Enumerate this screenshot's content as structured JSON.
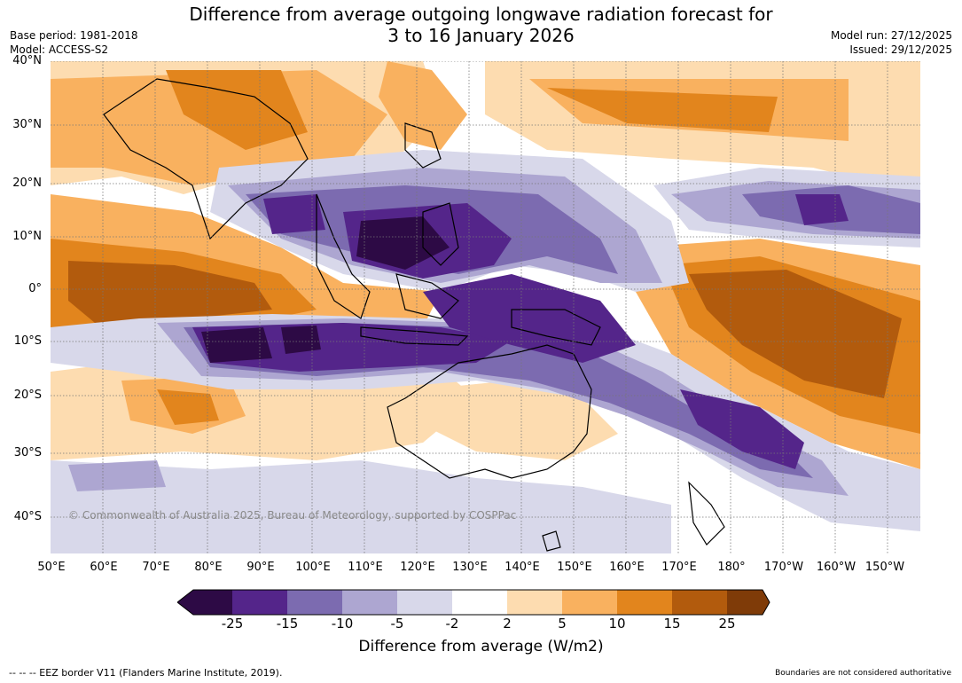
{
  "title_line1": "Difference from average outgoing longwave radiation forecast for",
  "title_line2": "3 to 16 January 2026",
  "meta": {
    "base_period": "Base period: 1981-2018",
    "model": "Model: ACCESS-S2",
    "model_run": "Model run: 27/12/2025",
    "issued": "Issued: 29/12/2025"
  },
  "lat_labels": [
    "40°N",
    "30°N",
    "20°N",
    "10°N",
    "0°",
    "10°S",
    "20°S",
    "30°S",
    "40°S"
  ],
  "lon_labels": [
    "50°E",
    "60°E",
    "70°E",
    "80°E",
    "90°E",
    "100°E",
    "110°E",
    "120°E",
    "130°E",
    "140°E",
    "150°E",
    "160°E",
    "170°E",
    "180°",
    "170°W",
    "160°W",
    "150°W"
  ],
  "copyright": "© Commonwealth of Australia 2025, Bureau of Meteorology, supported by COSPPac",
  "colorbar": {
    "label": "Difference from average (W/m2)",
    "ticks": [
      "-25",
      "-15",
      "-10",
      "-5",
      "-2",
      "2",
      "5",
      "10",
      "15",
      "25"
    ],
    "colors": {
      "below_-25": "#2d0a45",
      "-25_-15": "#54258a",
      "-15_-10": "#7c6bb0",
      "-10_-5": "#ada6d1",
      "-5_-2": "#d8d8ea",
      "-2_2": "#ffffff",
      "2_5": "#fddcb0",
      "5_10": "#f9b15f",
      "10_15": "#e2851d",
      "15_25": "#b25b0d",
      "above_25": "#7f3b08"
    }
  },
  "eez_note": "--  --  -- EEZ border V11 (Flanders Marine Institute, 2019).",
  "disclaimer": "Boundaries are not considered authoritative"
}
